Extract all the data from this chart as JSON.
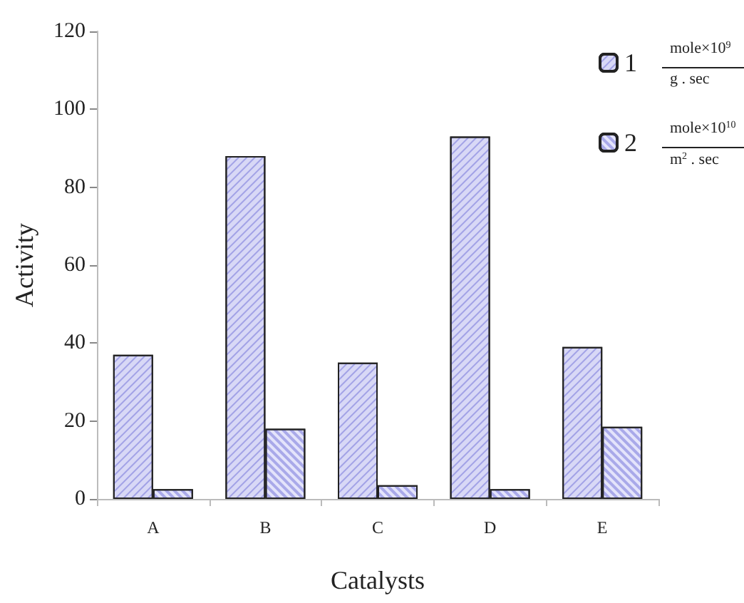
{
  "chart_data": {
    "type": "bar",
    "xlabel": "Catalysts",
    "ylabel": "Activity",
    "categories": [
      "A",
      "B",
      "C",
      "D",
      "E"
    ],
    "series": [
      {
        "name": "1",
        "color": "#d8d8f6",
        "values": [
          37,
          88,
          35,
          93,
          39
        ]
      },
      {
        "name": "2",
        "color": "#e4e4fb",
        "values": [
          2.5,
          18,
          3.5,
          2.5,
          18.5
        ]
      }
    ],
    "ylim": [
      0,
      120
    ],
    "yticks": [
      0,
      20,
      40,
      60,
      80,
      100,
      120
    ],
    "grid": false,
    "legend": "top right",
    "annotations": [
      "mole×10$^{9}$",
      "g . sec",
      "mole×10$^{10}$",
      "m$^{2}$ . sec"
    ]
  }
}
